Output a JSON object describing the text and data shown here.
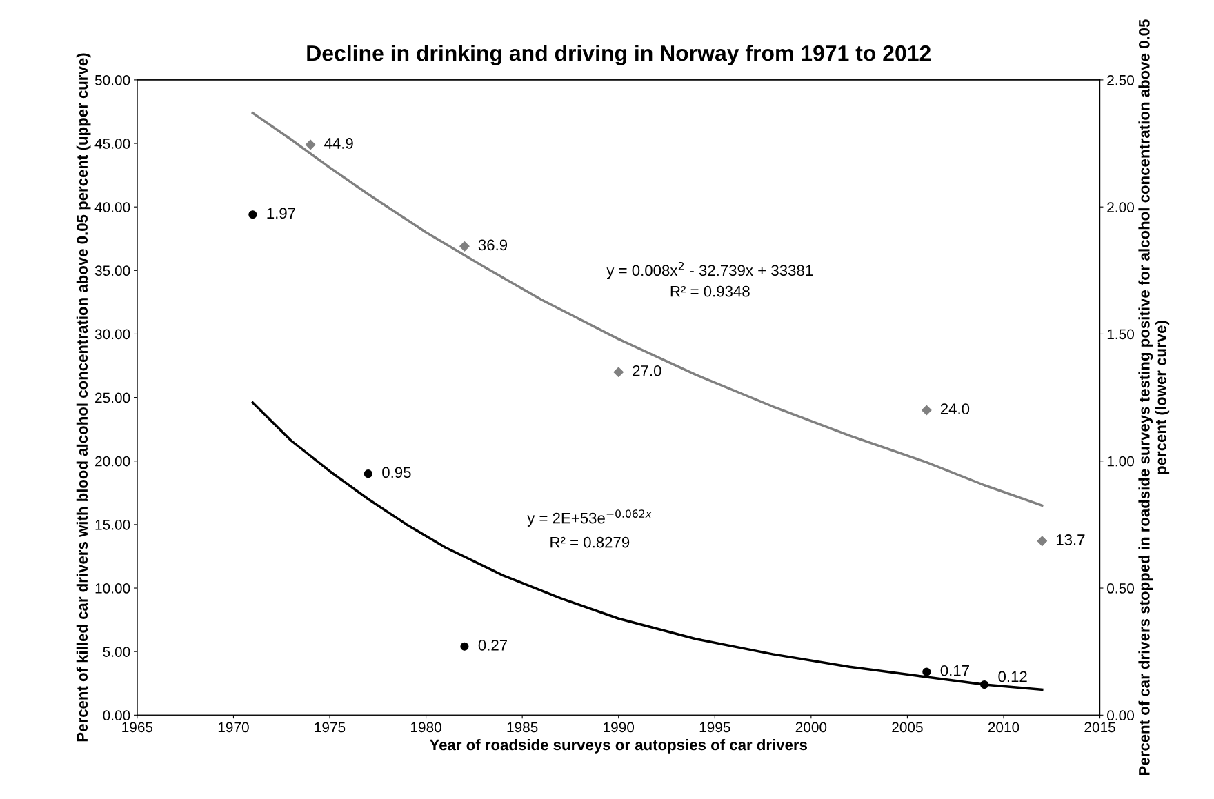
{
  "chart_data": {
    "type": "scatter",
    "title": "Decline in drinking and driving in Norway from 1971 to 2012",
    "xlabel": "Year of roadside surveys or autopsies of car drivers",
    "ylabel": "Percent of killed car drivers with blood alcohol concentration above 0.05 percent (upper curve)",
    "y2label": "Percent of car drivers stopped in roadside surveys testing positive for alcohol concentration above 0.05 percent (lower curve)",
    "xlim": [
      1965,
      2015
    ],
    "xticks": [
      1965,
      1970,
      1975,
      1980,
      1985,
      1990,
      1995,
      2000,
      2005,
      2010,
      2015
    ],
    "ylim": [
      0,
      50
    ],
    "yticks": [
      {
        "value": 0,
        "label": "0.00"
      },
      {
        "value": 5,
        "label": "5.00"
      },
      {
        "value": 10,
        "label": "10.00"
      },
      {
        "value": 15,
        "label": "15.00"
      },
      {
        "value": 20,
        "label": "20.00"
      },
      {
        "value": 25,
        "label": "25.00"
      },
      {
        "value": 30,
        "label": "30.00"
      },
      {
        "value": 35,
        "label": "35.00"
      },
      {
        "value": 40,
        "label": "40.00"
      },
      {
        "value": 45,
        "label": "45.00"
      },
      {
        "value": 50,
        "label": "50.00"
      }
    ],
    "y2lim": [
      0,
      2.5
    ],
    "y2ticks": [
      {
        "value": 0,
        "label": "0.00"
      },
      {
        "value": 0.5,
        "label": "0.50"
      },
      {
        "value": 1,
        "label": "1.00"
      },
      {
        "value": 1.5,
        "label": "1.50"
      },
      {
        "value": 2,
        "label": "2.00"
      },
      {
        "value": 2.5,
        "label": "2.50"
      }
    ],
    "grid": false,
    "series": [
      {
        "type": "line",
        "color": "#808080",
        "marker": "none",
        "x": [
          1971,
          1973,
          1975,
          1977,
          1980,
          1983,
          1986,
          1990,
          1994,
          1998,
          2002,
          2006,
          2009,
          2012
        ],
        "values": [
          47.4,
          45.3,
          43.1,
          41.0,
          38.0,
          35.3,
          32.7,
          29.6,
          26.8,
          24.3,
          22.0,
          19.9,
          18.1,
          16.5
        ]
      },
      {
        "type": "line",
        "color": "#000000",
        "marker": "none",
        "axis": "y2",
        "x": [
          1971,
          1973,
          1975,
          1977,
          1979,
          1981,
          1984,
          1987,
          1990,
          1994,
          1998,
          2002,
          2006,
          2009,
          2012
        ],
        "values": [
          1.23,
          1.08,
          0.96,
          0.85,
          0.75,
          0.66,
          0.55,
          0.46,
          0.38,
          0.3,
          0.24,
          0.19,
          0.15,
          0.12,
          0.1
        ]
      },
      {
        "color": "#808080",
        "marker": "diamond",
        "x": [
          1974,
          1982,
          1990,
          2006,
          2012
        ],
        "values": [
          44.9,
          36.9,
          27.0,
          24.0,
          13.7
        ],
        "value_labels": [
          "44.9",
          "36.9",
          "27.0",
          "24.0",
          "13.7"
        ]
      },
      {
        "color": "#000000",
        "marker": "circle",
        "axis": "y2",
        "x": [
          1971,
          1977,
          1982,
          2006,
          2009
        ],
        "values": [
          1.97,
          0.95,
          0.27,
          0.17,
          0.12
        ],
        "value_labels": [
          "1.97",
          "0.95",
          "0.27",
          "0.17",
          "0.12"
        ]
      }
    ],
    "annotations": [
      "y = 0.008x$^{2}$ - 32.739x + 33381",
      "R² = 0.9348",
      "y = 2E+53e$^{−0.062x}$",
      "R² = 0.8279"
    ]
  }
}
